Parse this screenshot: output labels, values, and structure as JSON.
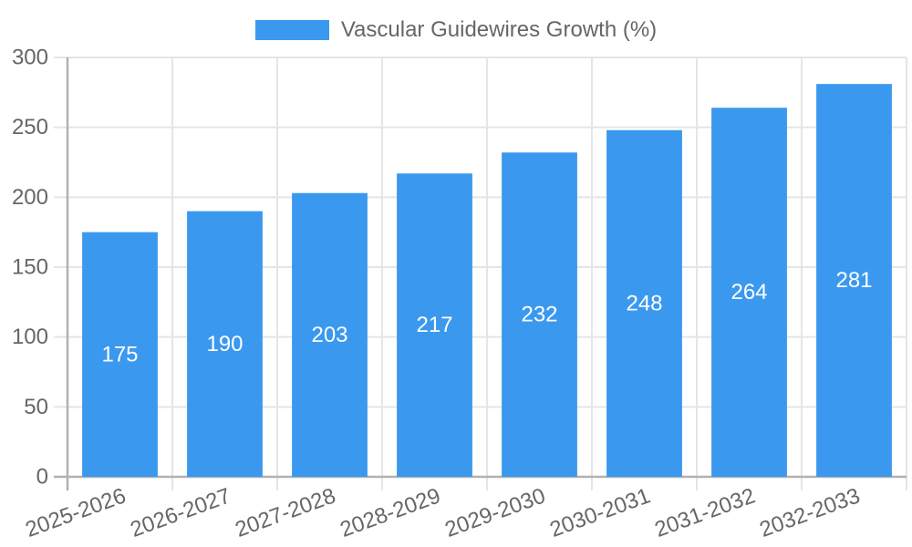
{
  "legend": {
    "label": "Vascular Guidewires Growth (%)"
  },
  "chart_data": {
    "type": "bar",
    "title": "Vascular Guidewires Growth (%)",
    "categories": [
      "2025-2026",
      "2026-2027",
      "2027-2028",
      "2028-2029",
      "2029-2030",
      "2030-2031",
      "2031-2032",
      "2032-2033"
    ],
    "values": [
      175,
      190,
      203,
      217,
      232,
      248,
      264,
      281
    ],
    "xlabel": "",
    "ylabel": "",
    "ylim": [
      0,
      300
    ],
    "yticks": [
      0,
      50,
      100,
      150,
      200,
      250,
      300
    ],
    "grid": true,
    "legend_position": "top-center",
    "value_labels": "inside-center",
    "x_label_rotation_deg": -20,
    "colors": {
      "bar": "#3A99EE",
      "grid": "#E5E5E5",
      "axis": "#B1B1B1",
      "tick_text": "#666666",
      "value_label_text": "#FFFFFF",
      "legend_text": "#666666",
      "background": "#FFFFFF"
    }
  }
}
